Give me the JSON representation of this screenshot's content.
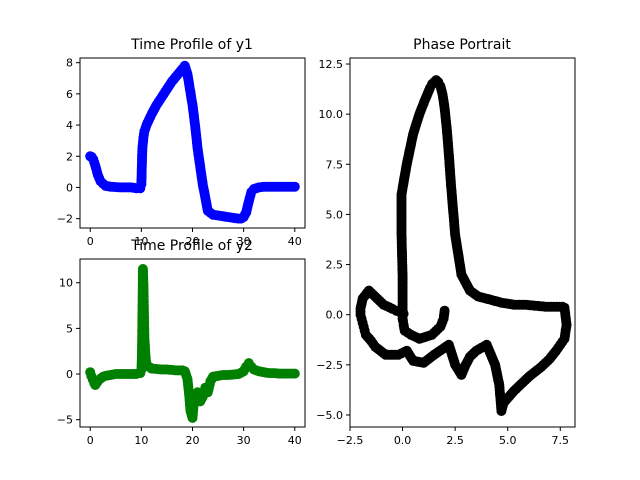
{
  "chart_data": [
    {
      "type": "scatter",
      "title": "Time Profile of y1",
      "xlabel": "",
      "ylabel": "",
      "xlim": [
        -2,
        42
      ],
      "ylim": [
        -2.6,
        8.3
      ],
      "xticks": [
        0,
        10,
        20,
        30,
        40
      ],
      "yticks": [
        -2,
        0,
        2,
        4,
        6,
        8
      ],
      "xtick_labels": [
        "0",
        "10",
        "20",
        "30",
        "40"
      ],
      "ytick_labels": [
        "−2",
        "0",
        "2",
        "4",
        "6",
        "8"
      ],
      "grid": false,
      "color": "#0000ff",
      "series": [
        {
          "x": [
            0,
            0.3,
            0.6,
            1,
            1.5,
            2,
            3,
            4,
            5,
            6,
            7,
            8,
            9,
            9.8,
            10,
            10.1,
            10.2,
            10.4,
            10.6,
            11,
            12,
            13,
            14,
            15,
            16,
            17,
            18,
            18.5,
            19,
            19.5,
            20,
            20.5,
            21,
            22,
            23,
            24,
            25,
            26,
            27,
            28,
            29,
            29.5,
            30,
            30.5,
            31,
            31.5,
            32,
            33,
            34,
            35,
            36,
            37,
            38,
            39,
            40
          ],
          "y": [
            2.0,
            1.95,
            1.8,
            1.4,
            0.8,
            0.4,
            0.1,
            0.05,
            0.02,
            0.0,
            0.0,
            0.0,
            -0.05,
            -0.05,
            0.2,
            1.5,
            2.5,
            3.2,
            3.6,
            4.0,
            4.7,
            5.3,
            5.8,
            6.3,
            6.8,
            7.2,
            7.6,
            7.8,
            7.3,
            6.3,
            5.3,
            4.0,
            2.5,
            0.2,
            -1.5,
            -1.75,
            -1.8,
            -1.85,
            -1.9,
            -1.95,
            -2.0,
            -2.0,
            -1.9,
            -1.6,
            -0.9,
            -0.3,
            -0.1,
            0.0,
            0.05,
            0.05,
            0.05,
            0.05,
            0.05,
            0.05,
            0.05
          ]
        }
      ]
    },
    {
      "type": "scatter",
      "title": "Time Profile of y2",
      "xlabel": "",
      "ylabel": "",
      "xlim": [
        -2,
        42
      ],
      "ylim": [
        -5.8,
        12.6
      ],
      "xticks": [
        0,
        10,
        20,
        30,
        40
      ],
      "yticks": [
        -5,
        0,
        5,
        10
      ],
      "xtick_labels": [
        "0",
        "10",
        "20",
        "30",
        "40"
      ],
      "ytick_labels": [
        "−5",
        "0",
        "5",
        "10"
      ],
      "grid": false,
      "color": "#008000",
      "series": [
        {
          "x": [
            0,
            0.2,
            0.5,
            0.8,
            1,
            1.2,
            1.5,
            2,
            2.5,
            3,
            4,
            5,
            6,
            7,
            8,
            9,
            9.8,
            10,
            10.1,
            10.2,
            10.3,
            10.4,
            10.5,
            10.6,
            10.8,
            11,
            11.5,
            12,
            13,
            14,
            15,
            16,
            17,
            18,
            18.5,
            19,
            19.3,
            19.6,
            20,
            20.2,
            20.5,
            21,
            21.5,
            22,
            22.5,
            23,
            23.5,
            24,
            25,
            26,
            27,
            28,
            29,
            30,
            30.5,
            31,
            31.5,
            32,
            33,
            34,
            35,
            36,
            37,
            38,
            39,
            40
          ],
          "y": [
            0.2,
            -0.2,
            -0.6,
            -1.0,
            -1.2,
            -1.0,
            -0.8,
            -0.5,
            -0.3,
            -0.2,
            -0.1,
            0.0,
            0.0,
            0.0,
            0.0,
            0.0,
            0.1,
            0.5,
            2.0,
            6.0,
            11.5,
            10.0,
            7.0,
            4.0,
            2.0,
            1.0,
            0.8,
            0.6,
            0.55,
            0.5,
            0.5,
            0.45,
            0.4,
            0.4,
            0.3,
            -0.5,
            -2.0,
            -4.0,
            -4.8,
            -3.5,
            -2.5,
            -2.0,
            -3.0,
            -2.5,
            -1.5,
            -2.0,
            -0.8,
            -0.3,
            -0.2,
            -0.1,
            -0.1,
            -0.05,
            0.0,
            0.3,
            0.8,
            1.2,
            0.8,
            0.5,
            0.3,
            0.2,
            0.1,
            0.1,
            0.05,
            0.05,
            0.05,
            0.05
          ]
        }
      ]
    },
    {
      "type": "scatter",
      "title": "Phase Portrait",
      "xlabel": "",
      "ylabel": "",
      "xlim": [
        -2.5,
        8.2
      ],
      "ylim": [
        -5.6,
        12.8
      ],
      "xticks": [
        -2.5,
        0.0,
        2.5,
        5.0,
        7.5
      ],
      "yticks": [
        -5.0,
        -2.5,
        0.0,
        2.5,
        5.0,
        7.5,
        10.0,
        12.5
      ],
      "xtick_labels": [
        "−2.5",
        "0.0",
        "2.5",
        "5.0",
        "7.5"
      ],
      "ytick_labels": [
        "−5.0",
        "−2.5",
        "0.0",
        "2.5",
        "5.0",
        "7.5",
        "10.0",
        "12.5"
      ],
      "grid": false,
      "color": "#000000",
      "series": [
        {
          "x": [
            2.0,
            1.95,
            1.8,
            1.4,
            0.8,
            0.4,
            0.1,
            0.05,
            0.02,
            0.0,
            0.0,
            0.0,
            -0.05,
            -0.05,
            0.2,
            0.5,
            0.8,
            1.1,
            1.3,
            1.4,
            1.5,
            1.6,
            1.7,
            1.8,
            1.9,
            2.0,
            2.1,
            2.2,
            2.3,
            2.5,
            2.8,
            3.2,
            3.6,
            4.0,
            4.7,
            5.3,
            5.8,
            6.3,
            6.8,
            7.2,
            7.6,
            7.7,
            7.8,
            7.7,
            7.5,
            7.3,
            7.0,
            6.6,
            6.0,
            5.3,
            4.8,
            4.7,
            4.6,
            4.4,
            4.0,
            3.5,
            3.2,
            3.0,
            2.8,
            2.5,
            2.2,
            1.5,
            1.0,
            0.5,
            0.2,
            -0.2,
            -0.8,
            -1.3,
            -1.5,
            -1.75,
            -1.8,
            -1.85,
            -1.9,
            -1.95,
            -2.0,
            -2.0,
            -1.9,
            -1.6,
            -1.2,
            -0.9,
            -0.5,
            -0.3,
            0.0,
            0.05
          ],
          "y": [
            0.2,
            -0.2,
            -0.6,
            -1.0,
            -1.2,
            -1.0,
            -0.8,
            -0.5,
            -0.3,
            -0.2,
            0.5,
            2.0,
            4.0,
            6.0,
            7.5,
            9.0,
            10.0,
            10.8,
            11.3,
            11.5,
            11.6,
            11.7,
            11.6,
            11.4,
            11.0,
            10.3,
            9.3,
            8.0,
            6.5,
            4.0,
            2.0,
            1.2,
            0.9,
            0.8,
            0.6,
            0.5,
            0.5,
            0.45,
            0.4,
            0.4,
            0.4,
            0.35,
            -0.5,
            -1.2,
            -1.5,
            -1.8,
            -2.2,
            -2.6,
            -3.1,
            -3.8,
            -4.4,
            -4.8,
            -3.5,
            -2.5,
            -1.5,
            -1.8,
            -2.1,
            -2.5,
            -3.0,
            -2.5,
            -1.5,
            -2.0,
            -2.4,
            -2.3,
            -1.8,
            -2.0,
            -2.0,
            -1.6,
            -1.3,
            -1.0,
            -0.8,
            -0.6,
            -0.4,
            -0.2,
            0.0,
            0.3,
            0.8,
            1.2,
            0.8,
            0.5,
            0.3,
            0.2,
            0.1,
            0.05
          ]
        }
      ]
    }
  ]
}
